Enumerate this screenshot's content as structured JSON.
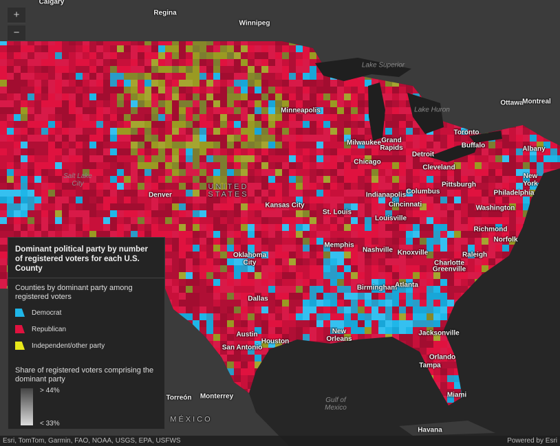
{
  "map": {
    "zoom": {
      "in": "+",
      "out": "−"
    },
    "labels": [
      "Calgary",
      "Regina",
      "Winnipeg",
      "Lake Superior",
      "Lake Huron",
      "Minneapolis",
      "Ottawa",
      "Montreal",
      "Toronto",
      "Buffalo",
      "Albany",
      "Milwaukee",
      "Grand Rapids",
      "Detroit",
      "Chicago",
      "Cleveland",
      "Salt Lake City",
      "Denver",
      "UNITED STATES",
      "New York",
      "Philadelphia",
      "Pittsburgh",
      "Indianapolis",
      "Columbus",
      "Cincinnati",
      "Kansas City",
      "St. Louis",
      "Louisville",
      "Washington",
      "Richmond",
      "Norfolk",
      "Nashville",
      "Knoxville",
      "Raleigh",
      "Oklahoma City",
      "Memphis",
      "Charlotte",
      "Greenville",
      "Birmingham",
      "Atlanta",
      "Dallas",
      "Austin",
      "Houston",
      "New Orleans",
      "San Antonio",
      "Jacksonville",
      "Orlando",
      "Tampa",
      "Miami",
      "Torreón",
      "Monterrey",
      "Gulf of Mexico",
      "MÉXICO",
      "Havana"
    ],
    "legend": {
      "title": "Dominant political party by number of registered voters for each U.S. County",
      "subtitle": "Counties by dominant party among registered voters",
      "items": [
        {
          "label": "Democrat",
          "color": "#1fb6e8"
        },
        {
          "label": "Republican",
          "color": "#e0123f"
        },
        {
          "label": "Independent/other party",
          "color": "#e8e81a"
        }
      ],
      "share_title": "Share of registered voters comprising the dominant party",
      "share_high": "> 44%",
      "share_low": "< 33%"
    },
    "attribution": "Esri, TomTom, Garmin, FAO, NOAA, USGS, EPA, USFWS",
    "powered_by": "Powered by Esri"
  }
}
